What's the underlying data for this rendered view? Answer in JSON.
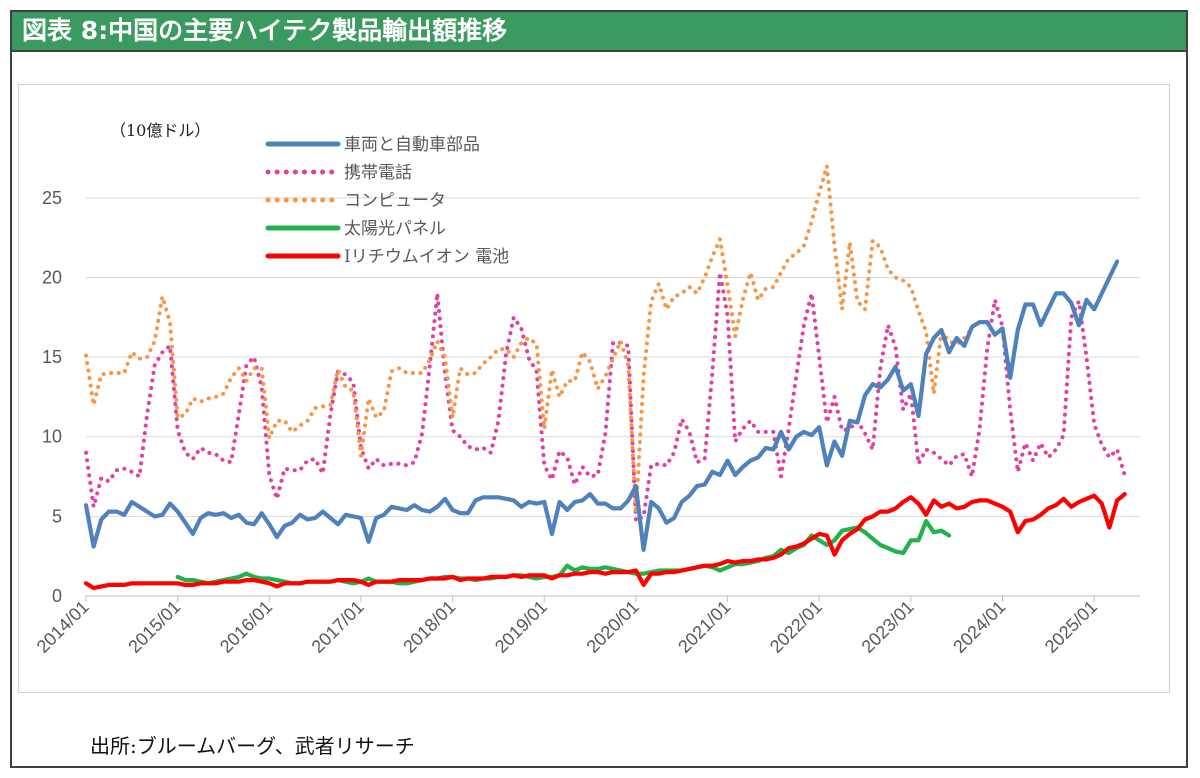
{
  "title": "図表 8:中国の主要ハイテク製品輸出額推移",
  "source": "出所:ブルームバーグ、武者リサーチ",
  "chart_data": {
    "type": "line",
    "unit_label": "（10億ドル）",
    "y_ticks": [
      "0",
      "5",
      "10",
      "15",
      "20",
      "25"
    ],
    "ylim": [
      0,
      27.5
    ],
    "x_ticks": [
      "2014/01",
      "2015/01",
      "2016/01",
      "2017/01",
      "2018/01",
      "2019/01",
      "2020/01",
      "2021/01",
      "2022/01",
      "2023/01",
      "2024/01",
      "2025/01"
    ],
    "xlim": [
      "2014/01",
      "2025/07"
    ],
    "grid": "horizontal",
    "legend_position": "top-left",
    "series": [
      {
        "name": "車両と自動車部品",
        "color": "#4f81bd",
        "style": "solid",
        "start": "2014/01",
        "values": [
          5.7,
          3.1,
          4.8,
          5.3,
          5.3,
          5.1,
          5.9,
          5.6,
          5.3,
          5.0,
          5.1,
          5.8,
          5.3,
          4.6,
          3.9,
          4.9,
          5.2,
          5.1,
          5.2,
          4.9,
          5.1,
          4.6,
          4.5,
          5.2,
          4.5,
          3.7,
          4.4,
          4.6,
          5.1,
          4.8,
          4.9,
          5.3,
          4.9,
          4.5,
          5.1,
          5.0,
          4.9,
          3.4,
          4.9,
          5.1,
          5.6,
          5.5,
          5.4,
          5.7,
          5.4,
          5.3,
          5.6,
          6.1,
          5.4,
          5.2,
          5.2,
          6.0,
          6.2,
          6.2,
          6.2,
          6.1,
          6.0,
          5.6,
          5.9,
          5.8,
          5.9,
          3.9,
          5.9,
          5.4,
          5.9,
          6.0,
          6.4,
          5.8,
          5.8,
          5.5,
          5.5,
          6.0,
          6.9,
          2.9,
          5.9,
          5.5,
          4.6,
          4.9,
          5.9,
          6.3,
          6.9,
          7.0,
          7.8,
          7.6,
          8.5,
          7.6,
          8.1,
          8.5,
          8.7,
          9.3,
          9.2,
          10.3,
          9.2,
          10.0,
          10.3,
          10.1,
          10.6,
          8.2,
          9.7,
          8.8,
          11.0,
          10.9,
          12.6,
          13.3,
          13.1,
          13.6,
          14.4,
          12.9,
          13.3,
          11.3,
          15.2,
          16.2,
          16.7,
          15.3,
          16.2,
          15.7,
          16.9,
          17.2,
          17.2,
          16.4,
          16.8,
          13.7,
          16.7,
          18.3,
          18.3,
          17.0,
          18.0,
          19.0,
          19.0,
          18.4,
          17.0,
          18.6,
          18.0,
          19.0,
          20.0,
          21.0
        ]
      },
      {
        "name": "携帯電話",
        "color": "#e040a0",
        "style": "dotted",
        "start": "2014/01",
        "values": [
          9.0,
          5.6,
          7.4,
          7.2,
          7.9,
          8.0,
          7.8,
          7.5,
          11.4,
          14.5,
          15.3,
          15.7,
          10.4,
          9.0,
          8.6,
          9.3,
          9.0,
          8.9,
          8.5,
          8.4,
          11.4,
          14.5,
          15.0,
          13.1,
          7.6,
          6.1,
          8.0,
          7.9,
          7.9,
          8.5,
          8.6,
          7.7,
          11.4,
          14.1,
          13.9,
          13.4,
          9.3,
          8.0,
          8.6,
          8.2,
          8.3,
          8.3,
          8.2,
          8.4,
          10.2,
          14.4,
          19.0,
          14.0,
          10.4,
          10.0,
          9.4,
          9.2,
          9.3,
          9.0,
          11.0,
          15.2,
          17.5,
          16.8,
          14.9,
          14.1,
          8.2,
          7.3,
          9.1,
          8.7,
          7.0,
          8.1,
          7.5,
          7.6,
          10.2,
          15.9,
          15.9,
          15.7,
          4.7,
          5.0,
          8.2,
          8.3,
          8.2,
          9.0,
          11.1,
          10.3,
          8.4,
          8.6,
          14.0,
          20.3,
          17.6,
          9.7,
          10.5,
          11.0,
          10.3,
          10.3,
          10.3,
          7.5,
          10.5,
          13.8,
          17.0,
          19.0,
          15.0,
          10.9,
          12.5,
          10.4,
          10.5,
          11.0,
          10.2,
          9.2,
          14.3,
          17.0,
          15.6,
          11.7,
          12.7,
          8.3,
          9.2,
          9.0,
          8.6,
          8.2,
          8.8,
          8.9,
          7.5,
          10.5,
          15.5,
          18.6,
          16.9,
          11.7,
          7.8,
          9.6,
          8.5,
          9.6,
          8.7,
          9.2,
          10.1,
          17.5,
          18.5,
          15.0,
          10.8,
          9.5,
          8.7,
          9.2,
          7.6
        ]
      },
      {
        "name": "コンピュータ",
        "color": "#f79646",
        "style": "dotted",
        "start": "2014/01",
        "values": [
          15.1,
          12.0,
          13.9,
          14.0,
          14.0,
          14.0,
          15.3,
          14.9,
          15.0,
          16.0,
          18.8,
          17.2,
          11.2,
          11.4,
          12.4,
          12.2,
          12.4,
          12.5,
          12.7,
          13.7,
          14.3,
          13.5,
          14.3,
          14.3,
          9.9,
          11.0,
          11.0,
          10.3,
          10.7,
          11.0,
          11.8,
          11.9,
          12.0,
          14.2,
          13.1,
          12.9,
          8.8,
          12.4,
          11.2,
          11.6,
          14.1,
          14.3,
          14.0,
          14.0,
          14.0,
          14.8,
          16.0,
          15.0,
          11.2,
          14.3,
          13.9,
          14.0,
          14.6,
          15.0,
          15.5,
          15.5,
          15.0,
          15.9,
          16.2,
          15.8,
          10.5,
          14.2,
          12.5,
          13.5,
          13.5,
          15.3,
          14.7,
          13.0,
          13.8,
          14.9,
          16.0,
          14.5,
          5.2,
          13.8,
          18.5,
          19.6,
          18.0,
          18.8,
          19.0,
          19.4,
          19.0,
          20.0,
          21.3,
          22.4,
          19.5,
          16.3,
          18.6,
          20.3,
          18.6,
          19.3,
          19.4,
          20.3,
          21.2,
          21.5,
          22.0,
          23.5,
          25.3,
          27.0,
          22.0,
          18.0,
          22.2,
          18.5,
          18.0,
          22.3,
          21.9,
          20.5,
          20.0,
          19.8,
          19.4,
          17.9,
          16.6,
          12.7,
          16.6,
          16.0,
          15.8,
          16.2,
          16.8
        ]
      },
      {
        "name": "太陽光パネル",
        "color": "#22b14c",
        "style": "solid",
        "start": "2015/01",
        "values": [
          1.2,
          1.0,
          1.0,
          0.9,
          0.8,
          0.9,
          1.0,
          1.1,
          1.2,
          1.4,
          1.2,
          1.1,
          1.1,
          1.0,
          0.9,
          0.8,
          0.8,
          0.9,
          0.9,
          0.9,
          0.9,
          1.0,
          0.9,
          0.8,
          0.9,
          1.1,
          0.9,
          0.9,
          0.9,
          0.8,
          0.8,
          0.9,
          1.0,
          1.1,
          1.1,
          1.2,
          1.2,
          1.1,
          1.1,
          1.0,
          1.1,
          1.1,
          1.2,
          1.2,
          1.3,
          1.3,
          1.2,
          1.1,
          1.2,
          1.2,
          1.3,
          1.9,
          1.6,
          1.8,
          1.7,
          1.7,
          1.8,
          1.7,
          1.6,
          1.5,
          1.4,
          1.4,
          1.5,
          1.6,
          1.6,
          1.6,
          1.6,
          1.7,
          1.8,
          1.9,
          1.8,
          1.6,
          1.8,
          2.0,
          2.0,
          2.1,
          2.2,
          2.4,
          2.5,
          2.9,
          2.7,
          3.0,
          3.2,
          3.8,
          3.5,
          3.2,
          3.5,
          4.1,
          4.2,
          4.3,
          4.0,
          3.6,
          3.2,
          3.0,
          2.8,
          2.7,
          3.5,
          3.5,
          4.7,
          4.0,
          4.1,
          3.8
        ]
      },
      {
        "name": "Iリチウムイオン 電池",
        "color": "#ff0000",
        "style": "solid",
        "start": "2014/01",
        "values": [
          0.8,
          0.5,
          0.6,
          0.7,
          0.7,
          0.7,
          0.8,
          0.8,
          0.8,
          0.8,
          0.8,
          0.8,
          0.8,
          0.7,
          0.7,
          0.8,
          0.8,
          0.8,
          0.9,
          0.9,
          0.9,
          1.0,
          1.0,
          0.9,
          0.8,
          0.6,
          0.8,
          0.8,
          0.8,
          0.9,
          0.9,
          0.9,
          0.9,
          1.0,
          1.0,
          1.0,
          0.9,
          0.7,
          0.9,
          0.9,
          0.9,
          1.0,
          1.0,
          1.0,
          1.0,
          1.1,
          1.1,
          1.1,
          1.2,
          1.0,
          1.1,
          1.1,
          1.1,
          1.2,
          1.2,
          1.2,
          1.3,
          1.2,
          1.3,
          1.3,
          1.3,
          1.1,
          1.3,
          1.3,
          1.4,
          1.4,
          1.5,
          1.5,
          1.4,
          1.5,
          1.5,
          1.5,
          1.6,
          0.7,
          1.4,
          1.4,
          1.5,
          1.5,
          1.6,
          1.7,
          1.8,
          1.9,
          1.9,
          2.0,
          2.2,
          2.1,
          2.2,
          2.2,
          2.3,
          2.3,
          2.4,
          2.6,
          3.0,
          3.1,
          3.3,
          3.6,
          3.9,
          3.8,
          2.6,
          3.5,
          3.9,
          4.2,
          4.8,
          5.0,
          5.3,
          5.3,
          5.5,
          5.9,
          6.2,
          5.8,
          5.1,
          6.0,
          5.6,
          5.8,
          5.5,
          5.6,
          5.9,
          6.0,
          6.0,
          5.8,
          5.6,
          5.3,
          4.0,
          4.7,
          4.8,
          5.1,
          5.5,
          5.7,
          6.1,
          5.6,
          5.9,
          6.1,
          6.3,
          5.8,
          4.3,
          6.0,
          6.4
        ]
      }
    ]
  }
}
